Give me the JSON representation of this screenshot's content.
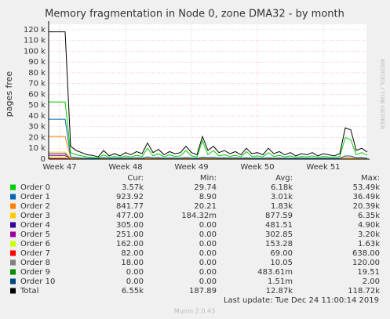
{
  "chart_data": {
    "type": "line",
    "title": "Memory fragmentation in Node 0, zone DMA32 - by month",
    "ylabel": "pages free",
    "side_text": "RRDTOOL / TOBI OETIKER",
    "last_update": "Last update: Tue Dec 24 11:00:14 2019",
    "footer": "Munin 2.0.43",
    "grid": true,
    "ylim": [
      0,
      125000
    ],
    "yticks": [
      0,
      {
        "value": 10000,
        "label": "10 k"
      },
      {
        "value": 20000,
        "label": "20 k"
      },
      {
        "value": 30000,
        "label": "30 k"
      },
      {
        "value": 40000,
        "label": "40 k"
      },
      {
        "value": 50000,
        "label": "50 k"
      },
      {
        "value": 60000,
        "label": "60 k"
      },
      {
        "value": 70000,
        "label": "70 k"
      },
      {
        "value": 80000,
        "label": "80 k"
      },
      {
        "value": 90000,
        "label": "90 k"
      },
      {
        "value": 100000,
        "label": "100 k"
      },
      {
        "value": 110000,
        "label": "110 k"
      },
      {
        "value": 120000,
        "label": "120 k"
      }
    ],
    "categories": [
      null,
      null,
      "Week 47",
      null,
      null,
      null,
      null,
      null,
      null,
      null,
      null,
      null,
      null,
      null,
      "Week 48",
      null,
      null,
      null,
      null,
      null,
      null,
      null,
      null,
      null,
      null,
      null,
      "Week 49",
      null,
      null,
      null,
      null,
      null,
      null,
      null,
      null,
      null,
      null,
      null,
      "Week 50",
      null,
      null,
      null,
      null,
      null,
      null,
      null,
      null,
      null,
      null,
      null,
      "Week 51",
      null,
      null,
      null,
      null,
      null,
      null,
      null,
      null
    ],
    "stat_headers": [
      "Cur:",
      "Min:",
      "Avg:",
      "Max:"
    ],
    "series": [
      {
        "name": "Order 0",
        "color": "#00cc00",
        "stats": [
          "3.57k",
          "29.74",
          "6.18k",
          "53.49k"
        ],
        "values": [
          53000,
          53000,
          53000,
          53000,
          6000,
          4000,
          3000,
          2000,
          1500,
          1000,
          4000,
          1500,
          2500,
          1500,
          3000,
          2000,
          3500,
          2500,
          10000,
          3000,
          5000,
          2000,
          4000,
          2500,
          3000,
          8000,
          3000,
          2000,
          17000,
          4000,
          8000,
          3000,
          4000,
          2500,
          3500,
          2000,
          7000,
          2500,
          3000,
          2000,
          6000,
          2500,
          3500,
          2000,
          3000,
          1500,
          2500,
          2000,
          3000,
          1500,
          2500,
          2000,
          1500,
          2500,
          20000,
          18000,
          4000,
          6000,
          3570
        ]
      },
      {
        "name": "Order 1",
        "color": "#0066b3",
        "stats": [
          "923.92",
          "8.90",
          "3.01k",
          "36.49k"
        ],
        "values": [
          37000,
          37000,
          37000,
          37000,
          2000,
          1500,
          1000,
          800,
          700,
          500,
          1500,
          600,
          1000,
          600,
          1200,
          800,
          1400,
          1000,
          2000,
          1200,
          1500,
          800,
          1200,
          1000,
          1100,
          1500,
          1100,
          800,
          1800,
          1500,
          1600,
          1100,
          1400,
          1000,
          1200,
          800,
          1300,
          900,
          1000,
          700,
          1300,
          900,
          1100,
          700,
          1000,
          600,
          900,
          700,
          1000,
          600,
          900,
          700,
          600,
          900,
          3000,
          2800,
          1400,
          1500,
          924
        ]
      },
      {
        "name": "Order 2",
        "color": "#ff8000",
        "stats": [
          "841.77",
          "20.21",
          "1.83k",
          "20.39k"
        ],
        "values": [
          21000,
          21000,
          21000,
          21000,
          1500,
          1000,
          800,
          600,
          500,
          400,
          800,
          400,
          600,
          400,
          700,
          500,
          800,
          600,
          1000,
          700,
          800,
          500,
          700,
          600,
          600,
          900,
          600,
          500,
          1000,
          800,
          900,
          600,
          800,
          600,
          700,
          500,
          800,
          500,
          600,
          400,
          800,
          500,
          600,
          400,
          600,
          400,
          500,
          400,
          600,
          400,
          500,
          400,
          400,
          500,
          1500,
          1400,
          800,
          900,
          842
        ]
      },
      {
        "name": "Order 3",
        "color": "#ffcc00",
        "stats": [
          "477.00",
          "184.32m",
          "877.59",
          "6.35k"
        ],
        "values": [
          6500,
          6500,
          6500,
          6500,
          600,
          500,
          400,
          400,
          300,
          300,
          500,
          300,
          400,
          300,
          400,
          300,
          500,
          400,
          600,
          400,
          500,
          300,
          400,
          400,
          400,
          500,
          400,
          300,
          600,
          500,
          500,
          400,
          500,
          400,
          400,
          300,
          500,
          300,
          400,
          300,
          500,
          300,
          400,
          300,
          400,
          300,
          300,
          300,
          400,
          300,
          300,
          300,
          300,
          300,
          600,
          600,
          500,
          500,
          477
        ]
      },
      {
        "name": "Order 4",
        "color": "#330099",
        "stats": [
          "305.00",
          "0.00",
          "481.51",
          "4.90k"
        ],
        "values": [
          4900,
          4900,
          4900,
          4900,
          400,
          350,
          320,
          300,
          300,
          300,
          320,
          300,
          310,
          300,
          320,
          300,
          330,
          310,
          350,
          310,
          330,
          300,
          320,
          310,
          310,
          340,
          310,
          300,
          360,
          320,
          340,
          310,
          320,
          310,
          320,
          300,
          330,
          300,
          310,
          300,
          330,
          300,
          310,
          300,
          310,
          300,
          300,
          300,
          310,
          300,
          300,
          300,
          300,
          300,
          380,
          370,
          320,
          330,
          305
        ]
      },
      {
        "name": "Order 5",
        "color": "#990099",
        "stats": [
          "251.00",
          "0.00",
          "302.85",
          "3.20k"
        ],
        "values": [
          3200,
          3200,
          3200,
          3200,
          270,
          260,
          255,
          250,
          250,
          250,
          255,
          250,
          252,
          250,
          255,
          250,
          256,
          252,
          260,
          252,
          256,
          250,
          254,
          252,
          252,
          258,
          252,
          250,
          262,
          255,
          258,
          252,
          255,
          252,
          254,
          250,
          256,
          250,
          252,
          250,
          256,
          250,
          252,
          250,
          252,
          250,
          250,
          250,
          252,
          250,
          250,
          250,
          250,
          250,
          270,
          268,
          255,
          258,
          251
        ]
      },
      {
        "name": "Order 6",
        "color": "#ccff00",
        "stats": [
          "162.00",
          "0.00",
          "153.28",
          "1.63k"
        ],
        "values": [
          1630,
          1630,
          1630,
          1630,
          160,
          155,
          150,
          150,
          150,
          150,
          152,
          150,
          151,
          150,
          152,
          150,
          153,
          151,
          155,
          151,
          153,
          150,
          152,
          151,
          151,
          154,
          151,
          150,
          156,
          152,
          154,
          151,
          152,
          151,
          152,
          150,
          153,
          150,
          151,
          150,
          153,
          150,
          151,
          150,
          151,
          150,
          150,
          150,
          151,
          150,
          150,
          150,
          150,
          150,
          165,
          164,
          155,
          158,
          162
        ]
      },
      {
        "name": "Order 7",
        "color": "#ff0000",
        "stats": [
          "82.00",
          "0.00",
          "69.00",
          "638.00"
        ],
        "values": [
          638,
          638,
          638,
          638,
          70,
          68,
          66,
          65,
          65,
          65,
          66,
          65,
          66,
          65,
          66,
          65,
          67,
          66,
          68,
          66,
          67,
          65,
          66,
          66,
          66,
          67,
          66,
          65,
          69,
          66,
          67,
          66,
          66,
          66,
          66,
          65,
          67,
          65,
          66,
          65,
          67,
          65,
          66,
          65,
          66,
          65,
          65,
          65,
          66,
          65,
          65,
          65,
          65,
          65,
          75,
          74,
          70,
          72,
          82
        ]
      },
      {
        "name": "Order 8",
        "color": "#808080",
        "stats": [
          "18.00",
          "0.00",
          "10.05",
          "120.00"
        ],
        "values": [
          120,
          120,
          120,
          120,
          10,
          10,
          9,
          9,
          9,
          9,
          10,
          9,
          10,
          9,
          10,
          9,
          10,
          10,
          11,
          10,
          10,
          9,
          10,
          10,
          10,
          10,
          10,
          9,
          11,
          10,
          10,
          10,
          10,
          10,
          10,
          9,
          10,
          9,
          10,
          9,
          10,
          9,
          10,
          9,
          10,
          9,
          9,
          9,
          10,
          9,
          9,
          9,
          9,
          9,
          12,
          12,
          11,
          11,
          18
        ]
      },
      {
        "name": "Order 9",
        "color": "#008f00",
        "stats": [
          "0.00",
          "0.00",
          "483.61m",
          "19.51"
        ],
        "values": [
          19.5,
          19.5,
          19.5,
          19.5,
          0,
          0,
          0,
          0,
          0,
          0,
          0,
          0,
          0,
          0,
          0,
          0,
          0,
          0,
          0,
          0,
          0,
          0,
          0,
          0,
          0,
          0,
          0,
          0,
          0,
          0,
          0,
          0,
          0,
          0,
          0,
          0,
          0,
          0,
          0,
          0,
          0,
          0,
          0,
          0,
          0,
          0,
          0,
          0,
          0,
          0,
          0,
          0,
          0,
          0,
          0,
          0,
          0,
          0,
          0
        ]
      },
      {
        "name": "Order 10",
        "color": "#00487d",
        "stats": [
          "0.00",
          "0.00",
          "1.51m",
          "2.00"
        ],
        "values": [
          2,
          2,
          2,
          2,
          0,
          0,
          0,
          0,
          0,
          0,
          0,
          0,
          0,
          0,
          0,
          0,
          0,
          0,
          0,
          0,
          0,
          0,
          0,
          0,
          0,
          0,
          0,
          0,
          0,
          0,
          0,
          0,
          0,
          0,
          0,
          0,
          0,
          0,
          0,
          0,
          0,
          0,
          0,
          0,
          0,
          0,
          0,
          0,
          0,
          0,
          0,
          0,
          0,
          0,
          0,
          0,
          0,
          0,
          0
        ]
      },
      {
        "name": "Total",
        "color": "#000000",
        "stats": [
          "6.55k",
          "187.89",
          "12.87k",
          "118.72k"
        ],
        "values": [
          118000,
          118000,
          118000,
          118000,
          12000,
          8000,
          6000,
          4000,
          3500,
          2000,
          8000,
          3000,
          5000,
          3000,
          6000,
          4000,
          7000,
          5000,
          15000,
          6000,
          9000,
          4000,
          7000,
          5000,
          6000,
          12000,
          6000,
          4000,
          21000,
          8000,
          12000,
          6000,
          8000,
          5000,
          7000,
          4000,
          10000,
          5000,
          6000,
          4000,
          10000,
          5000,
          7000,
          4000,
          6000,
          3000,
          5000,
          4000,
          6000,
          3000,
          5000,
          4000,
          3000,
          5000,
          29000,
          27000,
          8000,
          10000,
          6550
        ]
      }
    ]
  }
}
